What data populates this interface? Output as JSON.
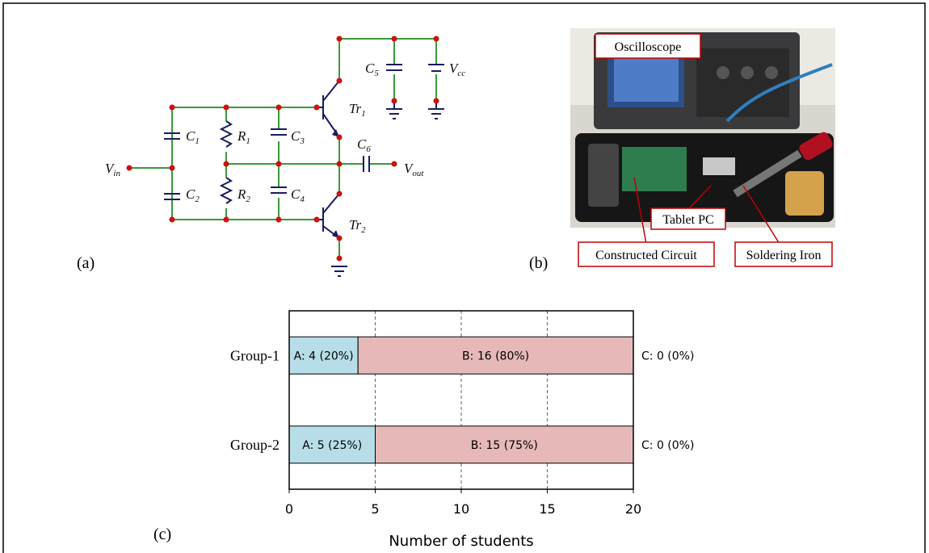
{
  "panel_labels": [
    "(a)",
    "(b)",
    "(c)"
  ],
  "circuit": {
    "labels": [
      {
        "main": "V",
        "sub": "in"
      },
      {
        "main": "C",
        "sub": "1"
      },
      {
        "main": "C",
        "sub": "2"
      },
      {
        "main": "R",
        "sub": "1"
      },
      {
        "main": "R",
        "sub": "2"
      },
      {
        "main": "C",
        "sub": "3"
      },
      {
        "main": "C",
        "sub": "4"
      },
      {
        "main": "Tr",
        "sub": "1"
      },
      {
        "main": "Tr",
        "sub": "2"
      },
      {
        "main": "C",
        "sub": "5"
      },
      {
        "main": "V",
        "sub": "cc"
      },
      {
        "main": "C",
        "sub": "6"
      },
      {
        "main": "V",
        "sub": "out"
      }
    ]
  },
  "photo": {
    "callouts": [
      "Oscilloscope",
      "Tablet PC",
      "Constructed Circuit",
      "Soldering Iron"
    ]
  },
  "chart_data": {
    "type": "stacked-barh",
    "x_label": "Number of students",
    "categories": [
      "Group-1",
      "Group-2"
    ],
    "series": [
      {
        "color": "#b7dee8",
        "values": [
          4,
          5
        ],
        "value_labels": [
          "A: 4 (20%)",
          "A: 5 (25%)"
        ]
      },
      {
        "color": "#e6b9b8",
        "values": [
          16,
          15
        ],
        "value_labels": [
          "B: 16 (80%)",
          "B: 15 (75%)"
        ]
      },
      {
        "values": [
          0,
          0
        ],
        "value_labels": [
          "C: 0 (0%)",
          "C: 0 (0%)"
        ]
      }
    ],
    "xlim": [
      0,
      20
    ],
    "xticks": [
      0,
      5,
      10,
      15,
      20
    ],
    "grid": true
  }
}
